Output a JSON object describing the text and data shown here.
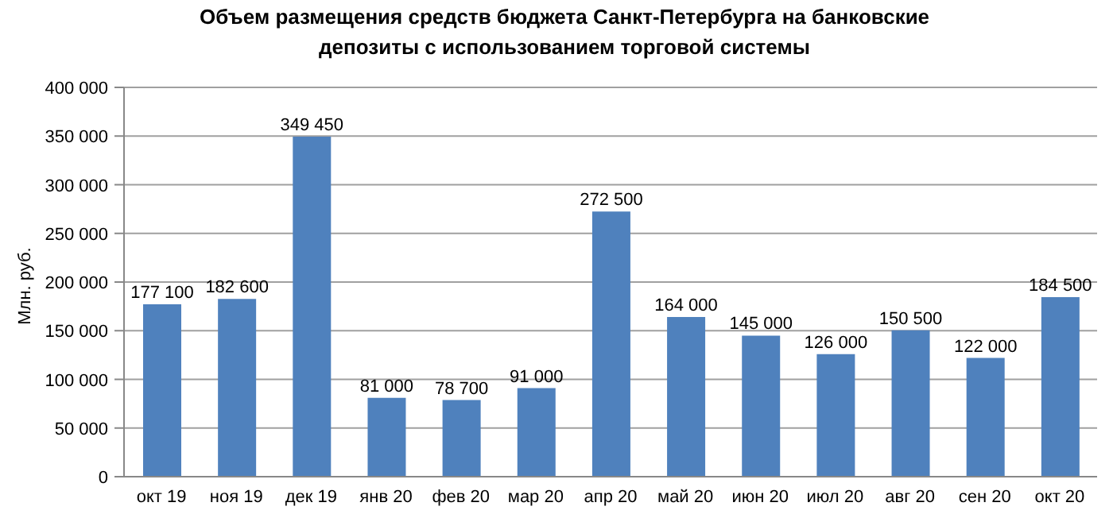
{
  "chart_data": {
    "type": "bar",
    "title": "Объем размещения средств бюджета Санкт-Петербурга на  банковские депозиты с использованием торговой системы",
    "ylabel": "Млн. руб.",
    "categories": [
      "окт 19",
      "ноя 19",
      "дек 19",
      "янв 20",
      "фев 20",
      "мар 20",
      "апр 20",
      "май 20",
      "июн 20",
      "июл 20",
      "авг 20",
      "сен 20",
      "окт 20"
    ],
    "values": [
      177100,
      182600,
      349450,
      81000,
      78700,
      91000,
      272500,
      164000,
      145000,
      126000,
      150500,
      122000,
      184500
    ],
    "value_labels": [
      "177 100",
      "182 600",
      "349 450",
      "81 000",
      "78 700",
      "91 000",
      "272 500",
      "164 000",
      "145 000",
      "126 000",
      "150 500",
      "122 000",
      "184 500"
    ],
    "color": "#4f81bd",
    "ylim": [
      0,
      400000
    ],
    "yticks": [
      0,
      {
        "value": 50000,
        "label": "50 000"
      },
      {
        "value": 100000,
        "label": "100 000"
      },
      {
        "value": 150000,
        "label": "150 000"
      },
      {
        "value": 200000,
        "label": "200 000"
      },
      {
        "value": 250000,
        "label": "250 000"
      },
      {
        "value": 300000,
        "label": "300 000"
      },
      {
        "value": 350000,
        "label": "350 000"
      },
      {
        "value": 400000,
        "label": "400 000"
      }
    ],
    "grid": "y"
  }
}
